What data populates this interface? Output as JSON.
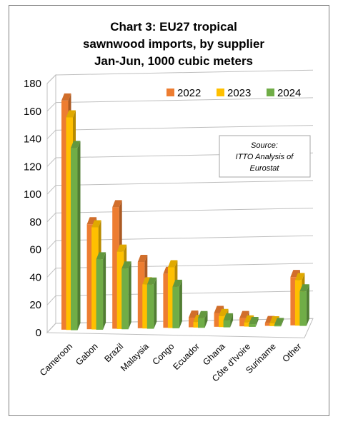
{
  "chart_data": {
    "type": "bar",
    "title": [
      "Chart 3: EU27 tropical",
      "sawnwood imports, by supplier",
      "Jan-Jun, 1000 cubic meters"
    ],
    "categories": [
      "Cameroon",
      "Gabon",
      "Brazil",
      "Malaysia",
      "Congo",
      "Ecuador",
      "Ghana",
      "Côte d'Ivoire",
      "Suriname",
      "Other"
    ],
    "series": [
      {
        "name": "2022",
        "color": "#ED7D31",
        "values": [
          166,
          76,
          88,
          48,
          39,
          7,
          10,
          6,
          2,
          35
        ]
      },
      {
        "name": "2023",
        "color": "#FFC000",
        "values": [
          154,
          74,
          56,
          32,
          44,
          4,
          8,
          3,
          2,
          33
        ]
      },
      {
        "name": "2024",
        "color": "#70AD47",
        "values": [
          132,
          51,
          44,
          32,
          30,
          7,
          5,
          2,
          1,
          25
        ]
      }
    ],
    "ylim": [
      0,
      180
    ],
    "yticks": [
      0,
      20,
      40,
      60,
      80,
      100,
      120,
      140,
      160,
      180
    ],
    "grid": true,
    "legend": "top-right",
    "annotation": [
      "Source:",
      "ITTO Analysis of",
      "Eurostat"
    ]
  }
}
